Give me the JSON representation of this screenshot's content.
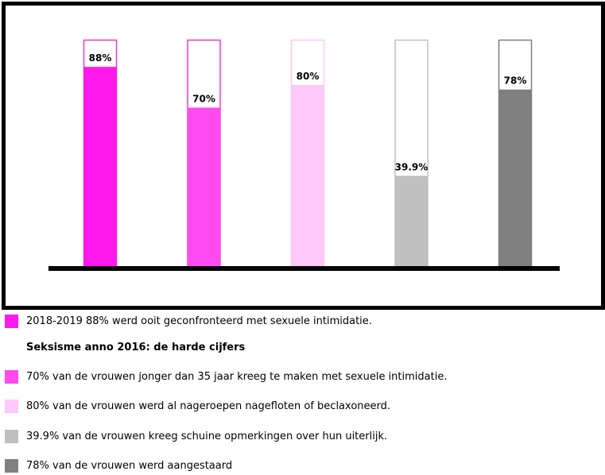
{
  "chart_data": {
    "type": "bar",
    "categories": [
      "",
      "",
      "",
      "",
      ""
    ],
    "values": [
      88,
      70,
      80,
      39.9,
      78
    ],
    "data_labels": [
      "88%",
      "70%",
      "80%",
      "39.9%",
      "78%"
    ],
    "ylim": [
      0,
      100
    ],
    "colors": [
      "#ff1aec",
      "#ff4af0",
      "#ffc8fb",
      "#c0c0c0",
      "#808080"
    ],
    "outline_colors": [
      "#e63ad6",
      "#e63ad6",
      "#ffc8fb",
      "#c0c0c0",
      "#808080"
    ],
    "title": "",
    "xlabel": "",
    "ylabel": "",
    "grid": false
  },
  "legend": {
    "heading": "Seksisme anno 2016: de harde cijfers",
    "items": [
      {
        "color": "#ff1aec",
        "text": "2018-2019 88% werd ooit geconfronteerd met sexuele intimidatie."
      },
      {
        "color": "#ff4af0",
        "text": "70% van de vrouwen jonger dan 35 jaar kreeg te maken met sexuele intimidatie."
      },
      {
        "color": "#ffc8fb",
        "text": "80% van de vrouwen werd al nageroepen nagefloten of beclaxoneerd."
      },
      {
        "color": "#c0c0c0",
        "text": "39.9% van de vrouwen kreeg schuine opmerkingen over hun uiterlijk."
      },
      {
        "color": "#808080",
        "text": "78% van de vrouwen werd aangestaard"
      }
    ]
  }
}
